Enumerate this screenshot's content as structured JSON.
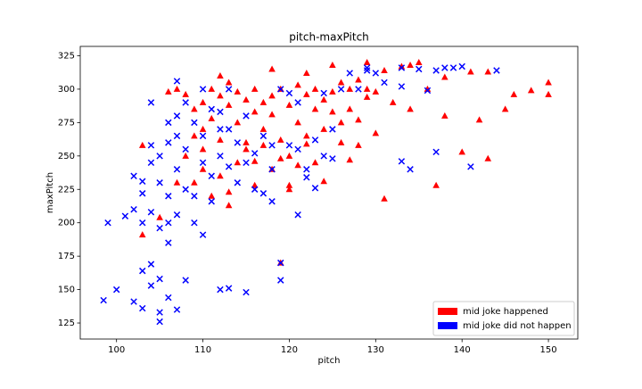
{
  "chart_data": {
    "type": "scatter",
    "title": "pitch-maxPitch",
    "x_label": "pitch",
    "y_label": "maxPitch",
    "xlim": [
      95.8,
      153.4
    ],
    "ylim": [
      113,
      332
    ],
    "xticks": [
      100,
      110,
      120,
      130,
      140,
      150
    ],
    "yticks": [
      125,
      150,
      175,
      200,
      225,
      250,
      275,
      300,
      325
    ],
    "legend": "lower right",
    "series": [
      {
        "name": "mid joke happened",
        "color": "red",
        "marker": "triangle",
        "x": [
          106,
          107,
          108,
          109,
          110,
          110,
          111,
          111,
          112,
          112,
          113,
          113,
          114,
          114,
          115,
          115,
          116,
          116,
          117,
          117,
          118,
          118,
          119,
          119,
          120,
          120,
          121,
          121,
          122,
          122,
          123,
          123,
          124,
          124,
          125,
          125,
          126,
          127,
          128,
          129,
          130,
          132,
          134,
          136,
          108,
          109,
          110,
          111,
          112,
          113,
          114,
          115,
          117,
          119,
          107,
          109,
          110,
          118,
          121,
          122,
          126,
          127,
          130,
          128,
          123,
          113,
          116,
          120,
          112,
          118,
          122,
          125,
          129,
          134,
          103,
          103,
          105,
          119,
          131,
          137,
          140,
          143,
          145,
          150,
          150,
          148,
          146,
          141,
          143,
          138,
          142,
          138,
          135,
          133,
          128,
          129,
          131,
          126,
          124,
          127,
          120,
          116
        ],
        "values": [
          298,
          300,
          296,
          285,
          290,
          270,
          300,
          278,
          295,
          262,
          288,
          305,
          298,
          275,
          292,
          260,
          283,
          300,
          290,
          270,
          295,
          281,
          300,
          262,
          288,
          250,
          303,
          275,
          296,
          259,
          285,
          300,
          292,
          270,
          298,
          283,
          305,
          300,
          307,
          300,
          298,
          290,
          285,
          300,
          250,
          230,
          240,
          220,
          235,
          213,
          245,
          255,
          258,
          248,
          230,
          265,
          255,
          240,
          243,
          265,
          275,
          285,
          267,
          258,
          245,
          223,
          228,
          228,
          310,
          315,
          312,
          318,
          320,
          318,
          258,
          191,
          204,
          170,
          218,
          228,
          253,
          248,
          285,
          305,
          296,
          299,
          296,
          313,
          313,
          280,
          277,
          309,
          320,
          317,
          277,
          294,
          314,
          260,
          231,
          247,
          225,
          246
        ]
      },
      {
        "name": "mid joke did not happen",
        "color": "blue",
        "marker": "x",
        "x": [
          104,
          104,
          105,
          105,
          106,
          106,
          107,
          107,
          107,
          108,
          108,
          109,
          109,
          110,
          110,
          110,
          111,
          111,
          112,
          112,
          113,
          113,
          114,
          114,
          115,
          115,
          116,
          116,
          117,
          118,
          119,
          120,
          121,
          121,
          122,
          123,
          124,
          125,
          126,
          127,
          128,
          129,
          130,
          135,
          138,
          140,
          102,
          102,
          103,
          103,
          104,
          105,
          106,
          107,
          101,
          103,
          108,
          106,
          112,
          118,
          120,
          109,
          111,
          124,
          117,
          113,
          104,
          107,
          122,
          98.5,
          99,
          100,
          102,
          103,
          103,
          104,
          104,
          105,
          105,
          105,
          106,
          106,
          107,
          108,
          110,
          112,
          113,
          115,
          119,
          119,
          118,
          121,
          123,
          125,
          133,
          134,
          136,
          137,
          141,
          144,
          139,
          137,
          131,
          129,
          133,
          133
        ],
        "values": [
          245,
          258,
          230,
          250,
          275,
          220,
          265,
          240,
          280,
          225,
          255,
          275,
          220,
          245,
          265,
          300,
          235,
          285,
          250,
          270,
          242,
          300,
          260,
          230,
          280,
          245,
          252,
          225,
          265,
          240,
          300,
          258,
          290,
          255,
          240,
          262,
          250,
          270,
          300,
          312,
          300,
          314,
          312,
          315,
          316,
          317,
          210,
          235,
          222,
          200,
          208,
          196,
          200,
          206,
          205,
          231,
          290,
          260,
          283,
          258,
          297,
          200,
          216,
          297,
          222,
          270,
          290,
          306,
          234,
          142,
          200,
          150,
          141,
          164,
          136,
          169,
          153,
          133,
          126,
          158,
          144,
          185,
          135,
          157,
          191,
          150,
          151,
          148,
          157,
          170,
          216,
          206,
          226,
          248,
          246,
          240,
          299,
          253,
          242,
          314,
          316,
          314,
          305,
          316,
          316,
          302
        ]
      }
    ]
  }
}
